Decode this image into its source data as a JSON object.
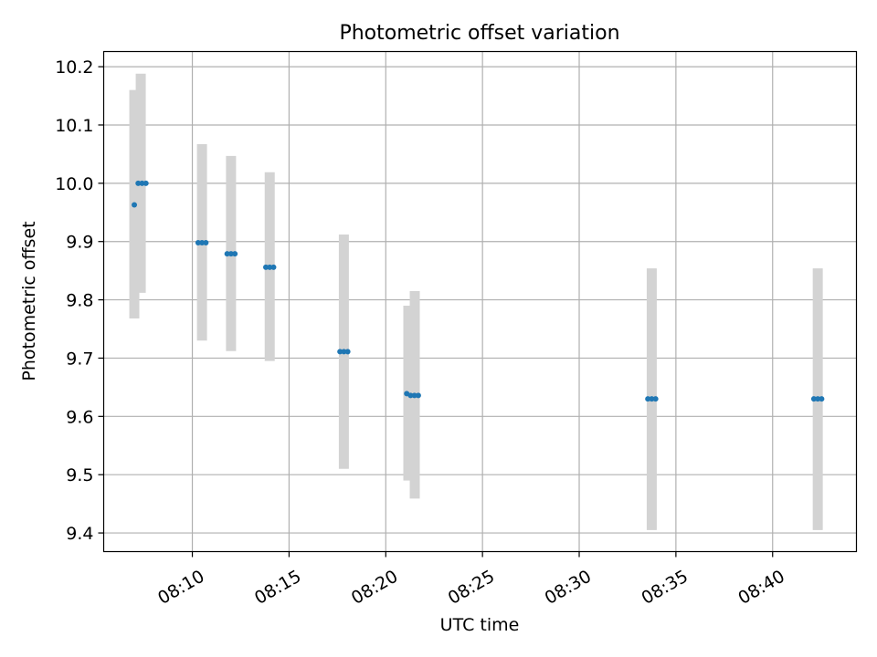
{
  "chart_data": {
    "type": "scatter",
    "title": "Photometric offset variation",
    "xlabel": "UTC time",
    "ylabel": "Photometric offset",
    "xlim": [
      "08:05:25",
      "08:44:20"
    ],
    "ylim": [
      9.368,
      10.226
    ],
    "x_ticks": [
      "08:10",
      "08:15",
      "08:20",
      "08:25",
      "08:30",
      "08:35",
      "08:40"
    ],
    "y_ticks": [
      "9.4",
      "9.5",
      "9.6",
      "9.7",
      "9.8",
      "9.9",
      "10.0",
      "10.1",
      "10.2"
    ],
    "grid": true,
    "point_color": "#1f77b4",
    "errorbar_color": "#d3d3d3",
    "errorbars": [
      {
        "x": "08:07:00",
        "low": 9.768,
        "high": 10.16
      },
      {
        "x": "08:07:20",
        "low": 9.812,
        "high": 10.188
      },
      {
        "x": "08:10:30",
        "low": 9.73,
        "high": 10.067
      },
      {
        "x": "08:12:00",
        "low": 9.712,
        "high": 10.047
      },
      {
        "x": "08:14:00",
        "low": 9.695,
        "high": 10.019
      },
      {
        "x": "08:17:50",
        "low": 9.51,
        "high": 9.912
      },
      {
        "x": "08:21:10",
        "low": 9.49,
        "high": 9.79
      },
      {
        "x": "08:21:30",
        "low": 9.459,
        "high": 9.815
      },
      {
        "x": "08:33:45",
        "low": 9.405,
        "high": 9.854
      },
      {
        "x": "08:42:20",
        "low": 9.405,
        "high": 9.854
      }
    ],
    "series": [
      {
        "points": [
          {
            "x": "08:07:00",
            "y": 9.963
          },
          {
            "x": "08:07:12",
            "y": 10.0
          },
          {
            "x": "08:07:24",
            "y": 10.0
          },
          {
            "x": "08:07:36",
            "y": 10.0
          },
          {
            "x": "08:10:18",
            "y": 9.898
          },
          {
            "x": "08:10:30",
            "y": 9.898
          },
          {
            "x": "08:10:42",
            "y": 9.898
          },
          {
            "x": "08:11:48",
            "y": 9.879
          },
          {
            "x": "08:12:00",
            "y": 9.879
          },
          {
            "x": "08:12:12",
            "y": 9.879
          },
          {
            "x": "08:13:48",
            "y": 9.856
          },
          {
            "x": "08:14:00",
            "y": 9.856
          },
          {
            "x": "08:14:12",
            "y": 9.856
          },
          {
            "x": "08:17:38",
            "y": 9.711
          },
          {
            "x": "08:17:50",
            "y": 9.711
          },
          {
            "x": "08:18:02",
            "y": 9.711
          },
          {
            "x": "08:21:05",
            "y": 9.639
          },
          {
            "x": "08:21:17",
            "y": 9.636
          },
          {
            "x": "08:21:29",
            "y": 9.636
          },
          {
            "x": "08:21:41",
            "y": 9.636
          },
          {
            "x": "08:33:33",
            "y": 9.63
          },
          {
            "x": "08:33:45",
            "y": 9.63
          },
          {
            "x": "08:33:57",
            "y": 9.63
          },
          {
            "x": "08:42:08",
            "y": 9.63
          },
          {
            "x": "08:42:20",
            "y": 9.63
          },
          {
            "x": "08:42:32",
            "y": 9.63
          }
        ]
      }
    ]
  }
}
